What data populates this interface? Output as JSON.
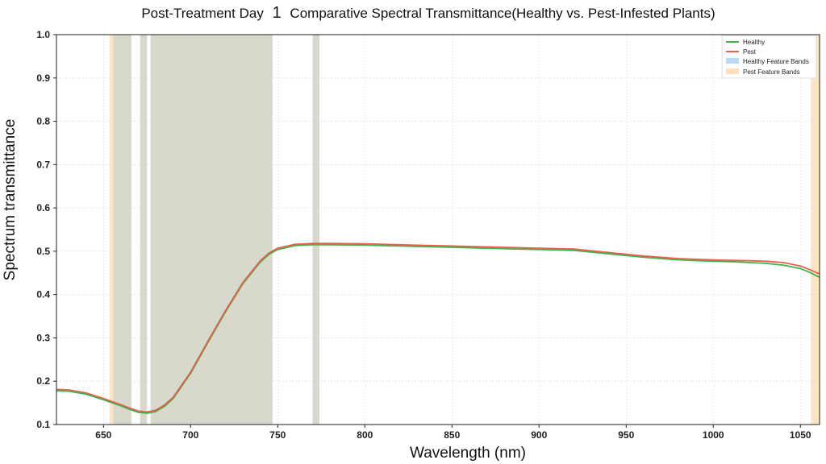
{
  "chart_data": {
    "type": "line",
    "title_part1": "Post-Treatment Day",
    "title_day": "1",
    "title_part2": "Comparative Spectral Transmittance(Healthy vs. Pest-Infested Plants)",
    "xlabel": "Wavelength (nm)",
    "ylabel": "Spectrum transmittance",
    "xlim": [
      623,
      1061
    ],
    "ylim": [
      0.1,
      1.0
    ],
    "xticks": [
      650,
      700,
      750,
      800,
      850,
      900,
      950,
      1000,
      1050
    ],
    "yticks": [
      0.1,
      0.2,
      0.3,
      0.4,
      0.5,
      0.6,
      0.7,
      0.8,
      0.9,
      1.0
    ],
    "grid": true,
    "legend_position": "top-right",
    "legend": [
      "Healthy",
      "Pest",
      "Healthy Feature Bands",
      "Pest Feature Bands"
    ],
    "colors": {
      "healthy": "#3cb44b",
      "pest": "#e8604c",
      "healthy_band": "#bcd8f5",
      "pest_band": "#fde0b8",
      "overlap_band": "#d8d8cc"
    },
    "bands": [
      {
        "kind": "pest",
        "start": 653.5,
        "end": 655.5
      },
      {
        "kind": "overlap",
        "start": 655.5,
        "end": 666
      },
      {
        "kind": "overlap",
        "start": 671,
        "end": 675
      },
      {
        "kind": "overlap",
        "start": 677,
        "end": 747
      },
      {
        "kind": "overlap",
        "start": 770,
        "end": 774
      },
      {
        "kind": "pest",
        "start": 1056,
        "end": 1061
      }
    ],
    "x": [
      623,
      630,
      640,
      650,
      660,
      665,
      670,
      675,
      680,
      685,
      690,
      700,
      710,
      720,
      730,
      740,
      745,
      750,
      760,
      770,
      780,
      800,
      820,
      850,
      880,
      900,
      920,
      940,
      960,
      980,
      1000,
      1010,
      1020,
      1030,
      1040,
      1050,
      1055,
      1061
    ],
    "series": [
      {
        "name": "Healthy",
        "values": [
          0.178,
          0.177,
          0.17,
          0.157,
          0.143,
          0.135,
          0.128,
          0.126,
          0.13,
          0.142,
          0.16,
          0.218,
          0.29,
          0.36,
          0.425,
          0.475,
          0.493,
          0.504,
          0.513,
          0.515,
          0.515,
          0.514,
          0.512,
          0.509,
          0.506,
          0.504,
          0.502,
          0.494,
          0.486,
          0.48,
          0.477,
          0.476,
          0.474,
          0.472,
          0.468,
          0.46,
          0.452,
          0.44
        ]
      },
      {
        "name": "Pest",
        "values": [
          0.181,
          0.18,
          0.173,
          0.16,
          0.146,
          0.138,
          0.131,
          0.129,
          0.133,
          0.145,
          0.163,
          0.221,
          0.293,
          0.363,
          0.428,
          0.478,
          0.496,
          0.507,
          0.516,
          0.518,
          0.518,
          0.517,
          0.515,
          0.512,
          0.509,
          0.507,
          0.505,
          0.497,
          0.489,
          0.483,
          0.48,
          0.479,
          0.478,
          0.477,
          0.474,
          0.466,
          0.458,
          0.448
        ]
      }
    ]
  }
}
